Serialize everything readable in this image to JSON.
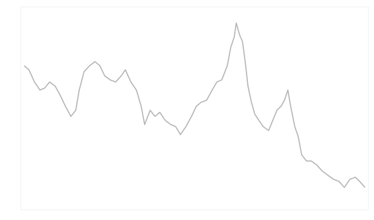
{
  "chart_data": {
    "type": "line",
    "color": "#b5b5b5",
    "x": [
      1,
      2.4,
      4,
      5.6,
      7,
      8.4,
      10,
      11.6,
      13,
      14.6,
      16,
      17,
      18.4,
      20,
      21.6,
      23,
      24.4,
      26,
      27.6,
      29.2,
      30.4,
      32,
      33.6,
      35,
      36,
      37.6,
      39,
      40.4,
      42,
      43.6,
      45,
      46.4,
      48,
      49.6,
      51,
      52.4,
      54,
      55.6,
      57,
      58.4,
      60,
      61,
      62,
      62.6,
      63.6,
      64.4,
      65.2,
      66,
      67,
      68,
      69.2,
      70.4,
      72,
      73.2,
      74.4,
      75.6,
      76.6,
      77.6,
      78.4,
      79.6,
      80.6,
      81.6,
      83,
      84.4,
      86,
      87.6,
      89.2,
      90.8,
      92.4,
      94,
      95.6,
      97.2,
      98.4,
      100
    ],
    "values": [
      71,
      69,
      63,
      59,
      60,
      63,
      61,
      56,
      51,
      46,
      49,
      59,
      68,
      71,
      73,
      71,
      66,
      64,
      63,
      66,
      69,
      63,
      59,
      51,
      42,
      49,
      46,
      48,
      44,
      42,
      41,
      37,
      41,
      46,
      51,
      53,
      54,
      59,
      63,
      64,
      71,
      80,
      85,
      92,
      86,
      83,
      73,
      61,
      53,
      47,
      44,
      41,
      39,
      44,
      49,
      51,
      54,
      59,
      51,
      41,
      36,
      27,
      24,
      24,
      22,
      19,
      17,
      15,
      14,
      11,
      15,
      16,
      14,
      11
    ],
    "xlim": [
      0,
      101
    ],
    "ylim": [
      0,
      100
    ]
  }
}
